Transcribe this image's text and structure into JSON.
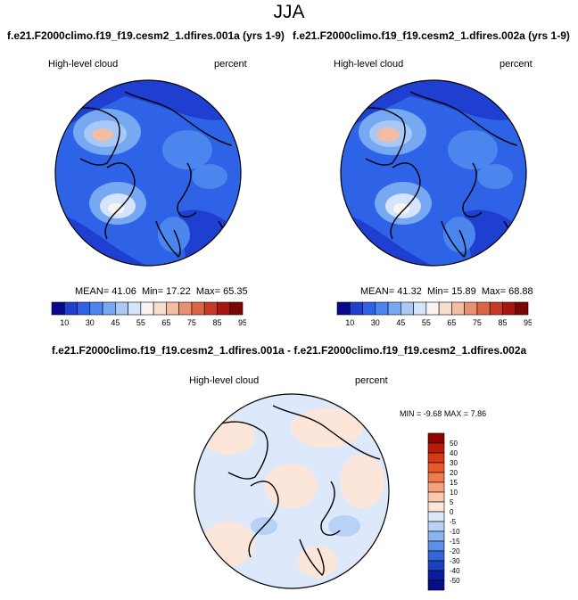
{
  "title": "JJA",
  "panels": [
    {
      "case": "f.e21.F2000climo.f19_f19.cesm2_1.dfires.001a (yrs 1-9)",
      "variable": "High-level cloud",
      "units": "percent",
      "stats": {
        "mean_label": "MEAN=",
        "mean": "41.06",
        "min_label": "Min=",
        "min": "17.22",
        "max_label": "Max=",
        "max": "65.35"
      }
    },
    {
      "case": "f.e21.F2000climo.f19_f19.cesm2_1.dfires.002a (yrs 1-9)",
      "variable": "High-level cloud",
      "units": "percent",
      "stats": {
        "mean_label": "MEAN=",
        "mean": "41.32",
        "min_label": "Min=",
        "min": "15.89",
        "max_label": "Max=",
        "max": "68.88"
      }
    }
  ],
  "colorbar_abs": {
    "labels": [
      "10",
      "30",
      "45",
      "55",
      "65",
      "75",
      "85",
      "95"
    ],
    "colors": [
      "#08088c",
      "#1e3fd0",
      "#2e63e8",
      "#4a86ee",
      "#77a8f2",
      "#a8c8f6",
      "#d5e4fa",
      "#f7f4f2",
      "#f7ddd0",
      "#f2bda4",
      "#e89173",
      "#dc6447",
      "#c93a25",
      "#a71610",
      "#7a0606"
    ]
  },
  "difference": {
    "title": "f.e21.F2000climo.f19_f19.cesm2_1.dfires.001a - f.e21.F2000climo.f19_f19.cesm2_1.dfires.002a",
    "variable": "High-level cloud",
    "units": "percent",
    "min_label": "MIN =",
    "min": "-9.68",
    "max_label": "MAX =",
    "max": "7.86"
  },
  "colorbar_diff": {
    "labels": [
      "50",
      "40",
      "30",
      "20",
      "15",
      "10",
      "5",
      "0",
      "-5",
      "-10",
      "-15",
      "-20",
      "-30",
      "-40",
      "-50"
    ],
    "colors": [
      "#8c0404",
      "#b81b0c",
      "#d43a16",
      "#e8592a",
      "#f07c4e",
      "#f5a27c",
      "#f9c8ad",
      "#fce6da",
      "#dde9fa",
      "#b7d2f6",
      "#8cb4ee",
      "#5e8fe4",
      "#3366d8",
      "#1c40c0",
      "#0c1ca0",
      "#050f86"
    ]
  }
}
